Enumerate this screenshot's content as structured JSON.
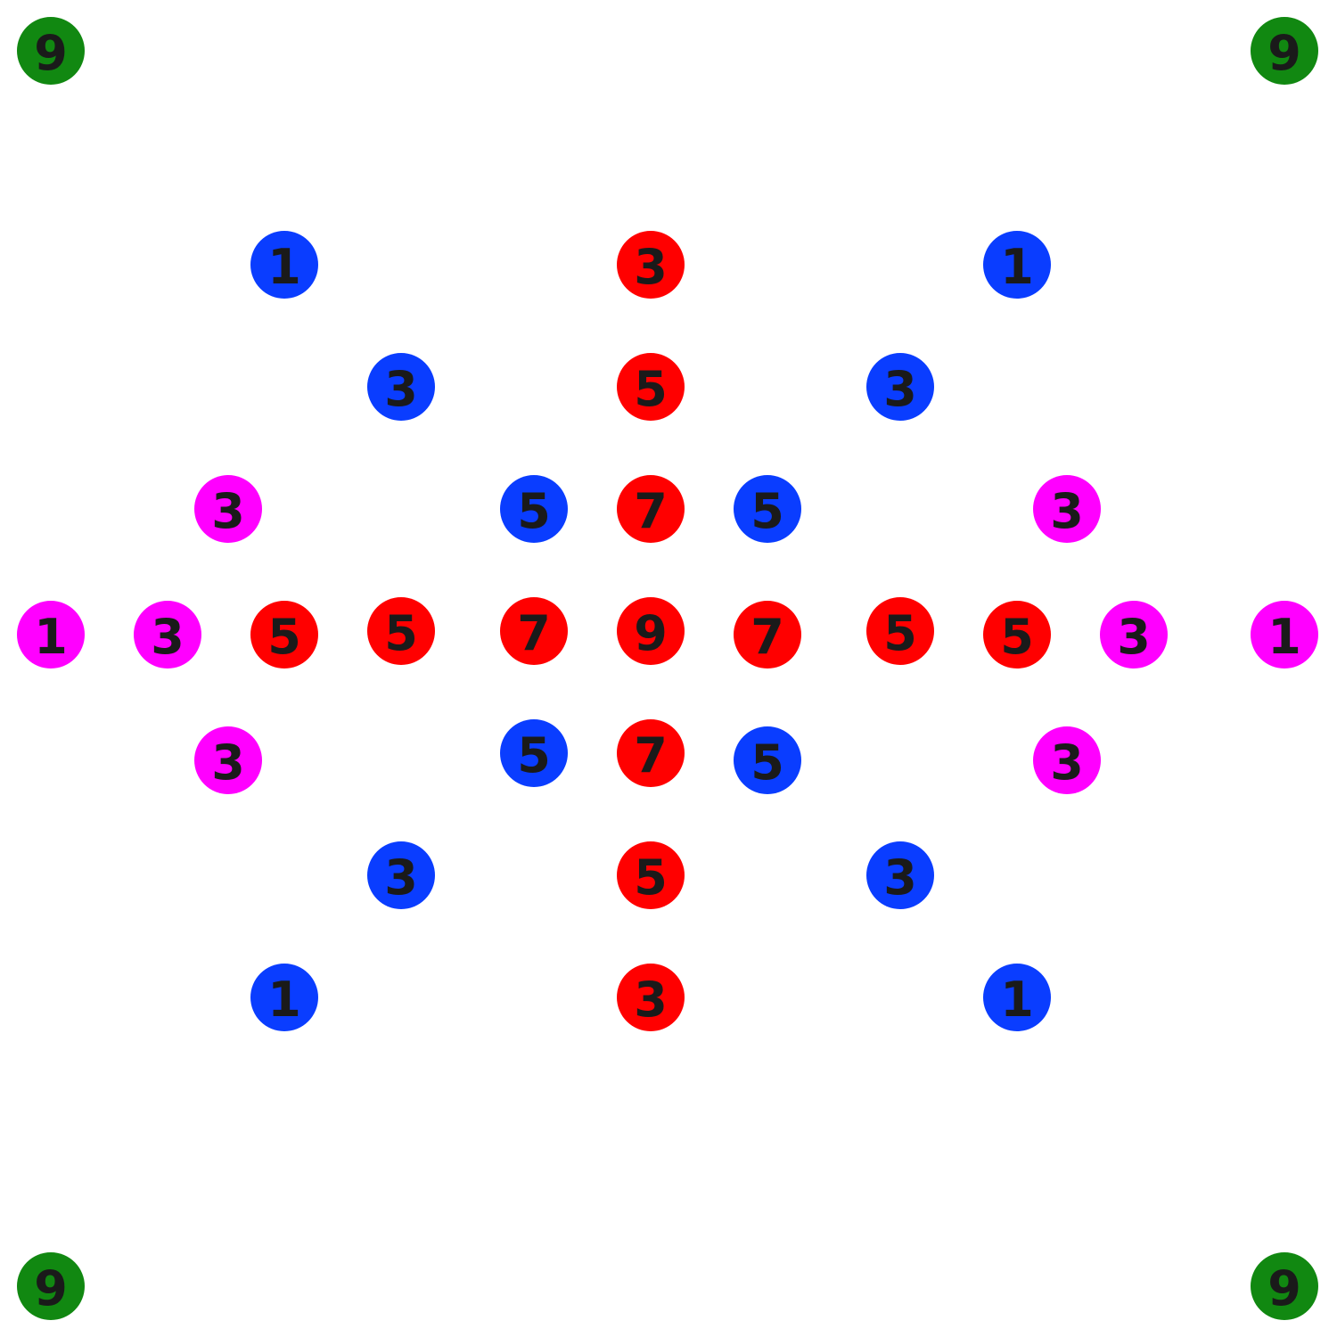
{
  "colors": {
    "green": "#118811",
    "blue": "#0a3dff",
    "red": "#ff0000",
    "magenta": "#ff00ff",
    "text": "#1a1a1a",
    "background": "#ffffff"
  },
  "nodes": [
    {
      "value": "9",
      "color": "green"
    },
    {
      "value": "9",
      "color": "green"
    },
    {
      "value": "1",
      "color": "blue"
    },
    {
      "value": "3",
      "color": "red"
    },
    {
      "value": "1",
      "color": "blue"
    },
    {
      "value": "3",
      "color": "blue"
    },
    {
      "value": "5",
      "color": "red"
    },
    {
      "value": "3",
      "color": "blue"
    },
    {
      "value": "3",
      "color": "magenta"
    },
    {
      "value": "5",
      "color": "blue"
    },
    {
      "value": "7",
      "color": "red"
    },
    {
      "value": "5",
      "color": "blue"
    },
    {
      "value": "3",
      "color": "magenta"
    },
    {
      "value": "1",
      "color": "magenta"
    },
    {
      "value": "3",
      "color": "magenta"
    },
    {
      "value": "5",
      "color": "red"
    },
    {
      "value": "5",
      "color": "red"
    },
    {
      "value": "7",
      "color": "red"
    },
    {
      "value": "9",
      "color": "red"
    },
    {
      "value": "7",
      "color": "red"
    },
    {
      "value": "5",
      "color": "red"
    },
    {
      "value": "5",
      "color": "red"
    },
    {
      "value": "3",
      "color": "magenta"
    },
    {
      "value": "1",
      "color": "magenta"
    },
    {
      "value": "3",
      "color": "magenta"
    },
    {
      "value": "5",
      "color": "blue"
    },
    {
      "value": "7",
      "color": "red"
    },
    {
      "value": "5",
      "color": "blue"
    },
    {
      "value": "3",
      "color": "magenta"
    },
    {
      "value": "3",
      "color": "blue"
    },
    {
      "value": "5",
      "color": "red"
    },
    {
      "value": "3",
      "color": "blue"
    },
    {
      "value": "1",
      "color": "blue"
    },
    {
      "value": "3",
      "color": "red"
    },
    {
      "value": "1",
      "color": "blue"
    },
    {
      "value": "9",
      "color": "green"
    },
    {
      "value": "9",
      "color": "green"
    }
  ]
}
